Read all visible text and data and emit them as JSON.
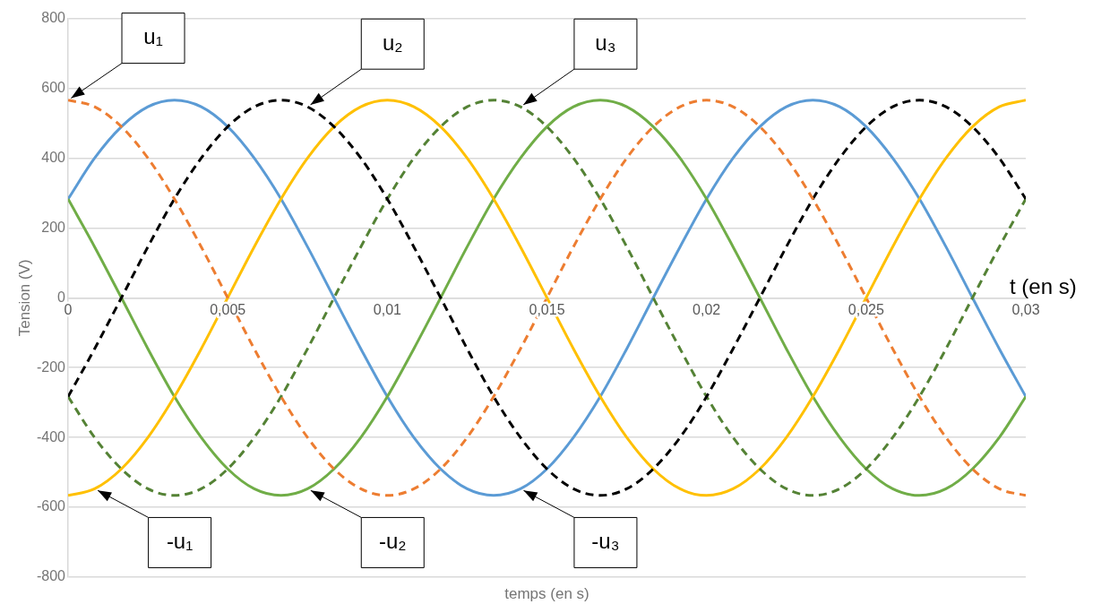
{
  "chart_data": {
    "type": "line",
    "xlabel": "temps (en s)",
    "ylabel": "Tension (V)",
    "x": [
      0,
      0.00083,
      0.00167,
      0.0025,
      0.00333,
      0.00417,
      0.005,
      0.00583,
      0.00667,
      0.0075,
      0.00833,
      0.00917,
      0.01,
      0.01083,
      0.01167,
      0.0125,
      0.01333,
      0.01417,
      0.015,
      0.01583,
      0.01667,
      0.0175,
      0.01833,
      0.01917,
      0.02,
      0.02083,
      0.02167,
      0.0225,
      0.02333,
      0.02417,
      0.025,
      0.02583,
      0.02667,
      0.0275,
      0.02833,
      0.02917,
      0.03
    ],
    "series": [
      {
        "color": "#ed7d31",
        "line_style": "dashed",
        "values": [
          566,
          547,
          490,
          400,
          283,
          146,
          0,
          -146,
          -283,
          -400,
          -490,
          -547,
          -566,
          -547,
          -490,
          -400,
          -283,
          -146,
          0,
          146,
          283,
          400,
          490,
          547,
          566,
          547,
          490,
          400,
          283,
          146,
          0,
          -146,
          -283,
          -400,
          -490,
          -547,
          -566
        ]
      },
      {
        "color": "#000000",
        "line_style": "dashed",
        "values": [
          -283,
          -146,
          0,
          146,
          283,
          400,
          490,
          547,
          566,
          547,
          490,
          400,
          283,
          146,
          0,
          -146,
          -283,
          -400,
          -490,
          -547,
          -566,
          -547,
          -490,
          -400,
          -283,
          -146,
          0,
          146,
          283,
          400,
          490,
          547,
          566,
          547,
          490,
          400,
          283
        ]
      },
      {
        "color": "#548235",
        "line_style": "dashed",
        "values": [
          -283,
          -400,
          -490,
          -547,
          -566,
          -547,
          -490,
          -400,
          -283,
          -146,
          0,
          146,
          283,
          400,
          490,
          547,
          566,
          547,
          490,
          400,
          283,
          146,
          0,
          -146,
          -283,
          -400,
          -490,
          -547,
          -566,
          -547,
          -490,
          -400,
          -283,
          -146,
          0,
          146,
          283
        ]
      },
      {
        "color": "#ffc000",
        "line_style": "solid",
        "values": [
          -566,
          -547,
          -490,
          -400,
          -283,
          -146,
          0,
          146,
          283,
          400,
          490,
          547,
          566,
          547,
          490,
          400,
          283,
          146,
          0,
          -146,
          -283,
          -400,
          -490,
          -547,
          -566,
          -547,
          -490,
          -400,
          -283,
          -146,
          0,
          146,
          283,
          400,
          490,
          547,
          566
        ]
      },
      {
        "color": "#70ad47",
        "line_style": "solid",
        "values": [
          283,
          146,
          0,
          -146,
          -283,
          -400,
          -490,
          -547,
          -566,
          -547,
          -490,
          -400,
          -283,
          -146,
          0,
          146,
          283,
          400,
          490,
          547,
          566,
          547,
          490,
          400,
          283,
          146,
          0,
          -146,
          -283,
          -400,
          -490,
          -547,
          -566,
          -547,
          -490,
          -400,
          -283
        ]
      },
      {
        "color": "#5b9bd5",
        "line_style": "solid",
        "values": [
          283,
          400,
          490,
          547,
          566,
          547,
          490,
          400,
          283,
          146,
          0,
          -146,
          -283,
          -400,
          -490,
          -547,
          -566,
          -547,
          -490,
          -400,
          -283,
          -146,
          0,
          146,
          283,
          400,
          490,
          547,
          566,
          547,
          490,
          400,
          283,
          146,
          0,
          -146,
          -283
        ]
      }
    ],
    "xlim": [
      0,
      0.03
    ],
    "xticks": [
      0,
      {
        "value": 0.005,
        "label": "0,005"
      },
      {
        "value": 0.01,
        "label": "0,01"
      },
      {
        "value": 0.015,
        "label": "0,015"
      },
      {
        "value": 0.02,
        "label": "0,02"
      },
      {
        "value": 0.025,
        "label": "0,025"
      },
      {
        "value": 0.03,
        "label": "0,03"
      }
    ],
    "ylim": [
      -800,
      800
    ],
    "yticks": [
      -800,
      -600,
      -400,
      -200,
      0,
      200,
      400,
      600,
      800
    ],
    "grid": "y",
    "legend": false,
    "marker": "none",
    "annotations": [
      {
        "text": "u₁",
        "x": 0,
        "y": 566
      },
      {
        "text": "u₂",
        "x": 0.0075,
        "y": 547
      },
      {
        "text": "u₃",
        "x": 0.01417,
        "y": 547
      },
      {
        "text": "-u₁",
        "x": 0.00083,
        "y": -547
      },
      {
        "text": "-u₂",
        "x": 0.0075,
        "y": -547
      },
      {
        "text": "-u₃",
        "x": 0.01417,
        "y": -547
      },
      "t (en s)"
    ]
  }
}
